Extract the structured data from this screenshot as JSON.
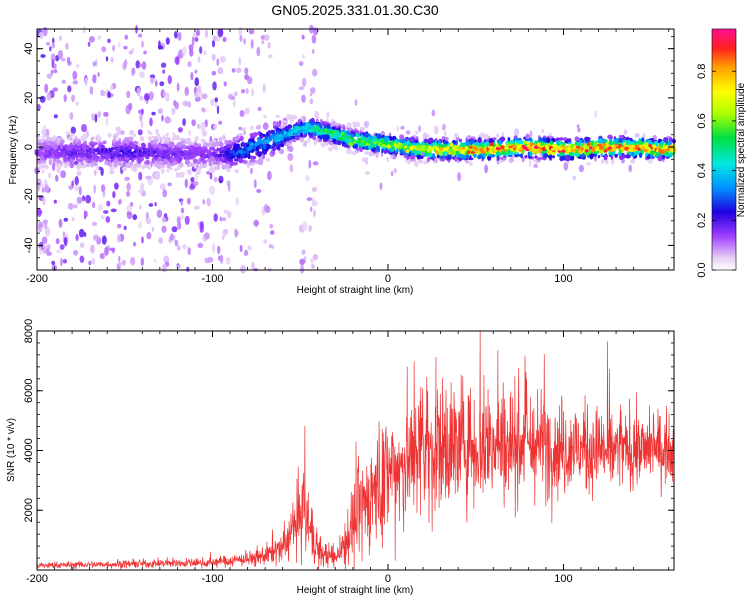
{
  "chart_data": [
    {
      "type": "heatmap",
      "title": "GN05.2025.331.01.30.C30",
      "xlabel": "Height of straight line (km)",
      "ylabel": "Frequency (Hz)",
      "xlim": [
        -200,
        163
      ],
      "ylim": [
        -50,
        48
      ],
      "xticks": [
        -200,
        -100,
        0,
        100
      ],
      "yticks": [
        -40,
        -20,
        0,
        20,
        40
      ],
      "colorbar": {
        "label": "Normalized spectral amplitude",
        "range": [
          0,
          0.97
        ],
        "ticks": [
          0.0,
          0.2,
          0.4,
          0.6,
          0.8
        ],
        "tick_labels": [
          "0.0",
          "0.2",
          "0.4",
          "0.6",
          "0.8"
        ]
      },
      "ridge": [
        {
          "x": -200,
          "f": -2,
          "amp": 0.15
        },
        {
          "x": -150,
          "f": -2,
          "amp": 0.2
        },
        {
          "x": -100,
          "f": -3,
          "amp": 0.15
        },
        {
          "x": -85,
          "f": -2,
          "amp": 0.3
        },
        {
          "x": -70,
          "f": 2,
          "amp": 0.35
        },
        {
          "x": -55,
          "f": 6,
          "amp": 0.4
        },
        {
          "x": -45,
          "f": 8,
          "amp": 0.45
        },
        {
          "x": -35,
          "f": 6,
          "amp": 0.5
        },
        {
          "x": -20,
          "f": 3,
          "amp": 0.55
        },
        {
          "x": 0,
          "f": 1,
          "amp": 0.6
        },
        {
          "x": 20,
          "f": -1,
          "amp": 0.7
        },
        {
          "x": 50,
          "f": -1,
          "amp": 0.8
        },
        {
          "x": 80,
          "f": 0,
          "amp": 0.85
        },
        {
          "x": 100,
          "f": -1,
          "amp": 0.85
        },
        {
          "x": 130,
          "f": 0,
          "amp": 0.85
        },
        {
          "x": 163,
          "f": -1,
          "amp": 0.8
        }
      ]
    },
    {
      "type": "line",
      "title": "",
      "xlabel": "Height of straight line (km)",
      "ylabel": "SNR (10 * v/v)",
      "xlim": [
        -200,
        163
      ],
      "ylim": [
        0,
        8000
      ],
      "xticks": [
        -200,
        -100,
        0,
        100
      ],
      "yticks": [
        2000,
        4000,
        6000,
        8000
      ],
      "color": "#ee3333",
      "envelope": [
        {
          "x": -200,
          "mean": 150,
          "spread": 120
        },
        {
          "x": -150,
          "mean": 200,
          "spread": 150
        },
        {
          "x": -100,
          "mean": 250,
          "spread": 180
        },
        {
          "x": -75,
          "mean": 400,
          "spread": 300
        },
        {
          "x": -60,
          "mean": 700,
          "spread": 600
        },
        {
          "x": -48,
          "mean": 2000,
          "spread": 1800
        },
        {
          "x": -40,
          "mean": 600,
          "spread": 600
        },
        {
          "x": -30,
          "mean": 400,
          "spread": 400
        },
        {
          "x": -20,
          "mean": 1500,
          "spread": 1600
        },
        {
          "x": -10,
          "mean": 2500,
          "spread": 2000
        },
        {
          "x": 0,
          "mean": 3200,
          "spread": 2400
        },
        {
          "x": 20,
          "mean": 4000,
          "spread": 2800
        },
        {
          "x": 40,
          "mean": 4200,
          "spread": 2500
        },
        {
          "x": 70,
          "mean": 4300,
          "spread": 2200
        },
        {
          "x": 100,
          "mean": 4100,
          "spread": 1800
        },
        {
          "x": 130,
          "mean": 4000,
          "spread": 1500
        },
        {
          "x": 163,
          "mean": 4100,
          "spread": 1300
        }
      ]
    }
  ]
}
